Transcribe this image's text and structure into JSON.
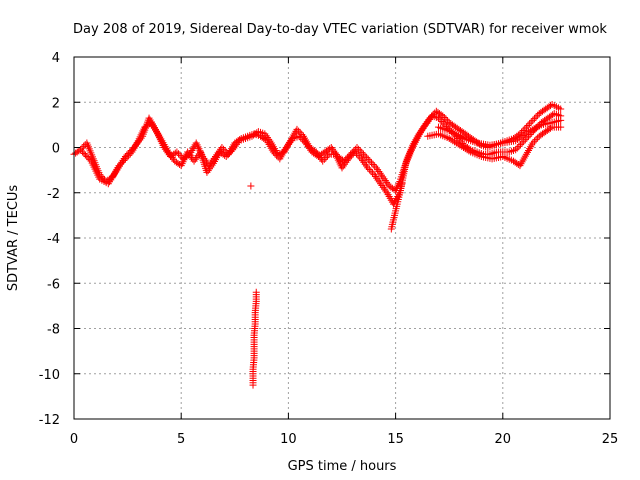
{
  "chart_data": {
    "type": "scatter",
    "title": "Day 208 of 2019, Sidereal Day-to-day VTEC variation (SDTVAR) for receiver wmok",
    "xlabel": "GPS time / hours",
    "ylabel": "SDTVAR / TECUs",
    "xlim": [
      0,
      25
    ],
    "ylim": [
      -12,
      4
    ],
    "xticks": [
      0,
      5,
      10,
      15,
      20,
      25
    ],
    "yticks": [
      4,
      2,
      0,
      -2,
      -4,
      -6,
      -8,
      -10,
      -12
    ],
    "grid": true,
    "marker": "+",
    "colors": {
      "series": "#ff0000",
      "grid": "#a0a0a0",
      "axis": "#000000"
    },
    "series": [
      {
        "name": "SDTVAR",
        "tracks": [
          [
            [
              0.0,
              -0.3
            ],
            [
              0.3,
              -0.1
            ],
            [
              0.6,
              0.2
            ],
            [
              0.9,
              -0.5
            ],
            [
              1.2,
              -1.2
            ],
            [
              1.5,
              -1.5
            ],
            [
              1.8,
              -1.3
            ],
            [
              2.1,
              -0.8
            ],
            [
              2.4,
              -0.5
            ],
            [
              2.7,
              -0.2
            ],
            [
              3.0,
              0.3
            ],
            [
              3.3,
              0.9
            ],
            [
              3.6,
              1.1
            ],
            [
              3.9,
              0.6
            ],
            [
              4.2,
              0.0
            ],
            [
              4.5,
              -0.4
            ],
            [
              4.8,
              -0.2
            ],
            [
              5.1,
              -0.5
            ],
            [
              5.4,
              -0.3
            ],
            [
              5.7,
              0.2
            ],
            [
              6.0,
              -0.4
            ],
            [
              6.3,
              -0.8
            ],
            [
              6.6,
              -0.4
            ],
            [
              6.9,
              0.0
            ],
            [
              7.2,
              -0.3
            ],
            [
              7.5,
              0.2
            ],
            [
              7.8,
              0.4
            ],
            [
              8.1,
              0.5
            ],
            [
              8.4,
              0.6
            ],
            [
              8.7,
              0.5
            ],
            [
              9.0,
              0.3
            ],
            [
              9.3,
              -0.2
            ],
            [
              9.6,
              -0.5
            ],
            [
              9.9,
              0.0
            ],
            [
              10.2,
              0.4
            ],
            [
              10.5,
              0.5
            ],
            [
              10.8,
              0.2
            ],
            [
              11.1,
              -0.2
            ],
            [
              11.4,
              -0.4
            ],
            [
              11.7,
              -0.2
            ],
            [
              12.0,
              0.0
            ],
            [
              12.3,
              -0.4
            ],
            [
              12.6,
              -0.6
            ],
            [
              12.9,
              -0.3
            ],
            [
              13.2,
              0.0
            ],
            [
              13.5,
              -0.3
            ],
            [
              13.8,
              -0.6
            ],
            [
              14.1,
              -0.9
            ],
            [
              14.4,
              -1.3
            ],
            [
              14.7,
              -1.7
            ],
            [
              15.0,
              -1.9
            ],
            [
              15.2,
              -1.5
            ],
            [
              15.4,
              -0.9
            ],
            [
              15.7,
              -0.2
            ],
            [
              16.0,
              0.4
            ],
            [
              16.3,
              0.9
            ],
            [
              16.6,
              1.3
            ],
            [
              16.9,
              1.6
            ],
            [
              17.2,
              1.4
            ],
            [
              17.5,
              1.1
            ],
            [
              17.8,
              0.9
            ],
            [
              18.1,
              0.7
            ],
            [
              18.4,
              0.5
            ],
            [
              18.7,
              0.3
            ],
            [
              19.0,
              0.1
            ],
            [
              19.3,
              0.0
            ],
            [
              19.6,
              0.1
            ],
            [
              19.9,
              0.2
            ],
            [
              20.2,
              0.3
            ],
            [
              20.5,
              0.4
            ],
            [
              20.8,
              0.6
            ],
            [
              21.1,
              0.9
            ],
            [
              21.4,
              1.2
            ],
            [
              21.7,
              1.5
            ],
            [
              22.0,
              1.7
            ],
            [
              22.3,
              1.9
            ],
            [
              22.7,
              1.7
            ]
          ],
          [
            [
              0.4,
              -0.2
            ],
            [
              0.8,
              -0.6
            ],
            [
              1.2,
              -1.4
            ],
            [
              1.6,
              -1.6
            ],
            [
              2.0,
              -1.0
            ],
            [
              2.4,
              -0.4
            ],
            [
              2.8,
              0.0
            ],
            [
              3.2,
              0.5
            ],
            [
              3.5,
              1.3
            ],
            [
              3.8,
              0.8
            ],
            [
              4.1,
              0.3
            ],
            [
              4.4,
              -0.2
            ],
            [
              4.7,
              -0.6
            ],
            [
              5.0,
              -0.8
            ],
            [
              5.3,
              -0.2
            ],
            [
              5.6,
              -0.6
            ],
            [
              5.9,
              -0.2
            ],
            [
              6.2,
              -1.1
            ],
            [
              6.5,
              -0.7
            ],
            [
              6.8,
              -0.2
            ],
            [
              7.1,
              -0.4
            ],
            [
              7.4,
              -0.1
            ],
            [
              7.7,
              0.3
            ],
            [
              8.0,
              0.4
            ],
            [
              8.3,
              0.5
            ],
            [
              8.6,
              0.7
            ],
            [
              8.9,
              0.6
            ],
            [
              9.2,
              0.2
            ],
            [
              9.5,
              -0.3
            ],
            [
              9.8,
              -0.2
            ],
            [
              10.1,
              0.3
            ],
            [
              10.4,
              0.8
            ],
            [
              10.7,
              0.5
            ],
            [
              11.0,
              0.0
            ],
            [
              11.3,
              -0.2
            ],
            [
              11.6,
              -0.6
            ],
            [
              11.9,
              -0.3
            ],
            [
              12.2,
              -0.3
            ],
            [
              12.5,
              -0.9
            ],
            [
              12.8,
              -0.5
            ],
            [
              13.1,
              -0.2
            ],
            [
              13.4,
              -0.5
            ],
            [
              13.7,
              -0.9
            ],
            [
              14.0,
              -1.2
            ],
            [
              14.3,
              -1.6
            ],
            [
              14.6,
              -2.0
            ],
            [
              14.9,
              -2.5
            ],
            [
              15.2,
              -2.0
            ],
            [
              15.5,
              -0.6
            ],
            [
              15.8,
              0.1
            ],
            [
              16.1,
              0.6
            ],
            [
              16.4,
              1.0
            ],
            [
              16.7,
              1.4
            ],
            [
              17.0,
              1.3
            ],
            [
              17.3,
              1.0
            ],
            [
              17.6,
              0.7
            ],
            [
              17.9,
              0.4
            ],
            [
              18.2,
              0.1
            ],
            [
              18.5,
              -0.1
            ],
            [
              18.8,
              -0.2
            ],
            [
              19.1,
              -0.3
            ],
            [
              19.4,
              -0.3
            ],
            [
              19.7,
              -0.2
            ],
            [
              20.0,
              -0.2
            ],
            [
              20.3,
              -0.2
            ],
            [
              20.6,
              -0.1
            ],
            [
              20.9,
              0.2
            ],
            [
              21.2,
              0.5
            ],
            [
              21.5,
              0.8
            ],
            [
              21.8,
              1.1
            ],
            [
              22.1,
              1.3
            ],
            [
              22.4,
              1.5
            ],
            [
              22.7,
              1.4
            ]
          ],
          [
            [
              16.5,
              0.5
            ],
            [
              17.0,
              0.6
            ],
            [
              17.5,
              0.4
            ],
            [
              18.0,
              0.1
            ],
            [
              18.5,
              -0.2
            ],
            [
              19.0,
              -0.4
            ],
            [
              19.5,
              -0.5
            ],
            [
              20.0,
              -0.4
            ],
            [
              20.5,
              -0.6
            ],
            [
              20.8,
              -0.8
            ],
            [
              21.1,
              -0.3
            ],
            [
              21.4,
              0.2
            ],
            [
              21.7,
              0.5
            ],
            [
              22.0,
              0.7
            ],
            [
              22.3,
              0.9
            ],
            [
              22.7,
              0.9
            ]
          ],
          [
            [
              17.0,
              0.9
            ],
            [
              17.6,
              0.7
            ],
            [
              18.2,
              0.4
            ],
            [
              18.8,
              0.2
            ],
            [
              19.4,
              0.1
            ],
            [
              20.0,
              0.2
            ],
            [
              20.6,
              0.3
            ],
            [
              21.2,
              0.7
            ],
            [
              21.8,
              1.0
            ],
            [
              22.3,
              1.1
            ],
            [
              22.7,
              1.2
            ]
          ],
          [
            [
              14.8,
              -3.6
            ],
            [
              14.9,
              -3.2
            ],
            [
              15.0,
              -2.8
            ],
            [
              15.1,
              -2.4
            ],
            [
              15.2,
              -2.0
            ],
            [
              15.3,
              -1.6
            ]
          ],
          [
            [
              8.5,
              -6.4
            ],
            [
              8.5,
              -6.8
            ],
            [
              8.45,
              -7.3
            ],
            [
              8.45,
              -7.8
            ],
            [
              8.4,
              -8.3
            ],
            [
              8.4,
              -8.8
            ],
            [
              8.4,
              -9.3
            ],
            [
              8.35,
              -9.8
            ],
            [
              8.35,
              -10.2
            ],
            [
              8.35,
              -10.5
            ]
          ],
          [
            [
              8.25,
              -1.7
            ]
          ]
        ]
      }
    ]
  }
}
